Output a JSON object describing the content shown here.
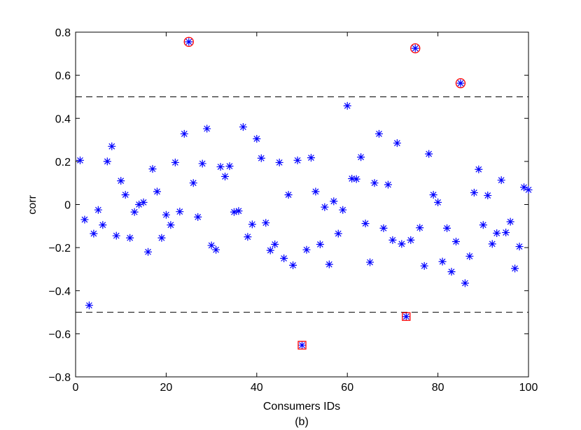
{
  "chart_data": {
    "type": "scatter",
    "xlabel": "Consumers IDs",
    "ylabel": "corr",
    "caption": "(b)",
    "xlim": [
      0,
      100
    ],
    "ylim": [
      -0.8,
      0.8
    ],
    "xticks": [
      0,
      20,
      40,
      60,
      80,
      100
    ],
    "yticks": [
      0.8,
      0.6,
      0.4,
      0.2,
      0,
      -0.2,
      -0.4,
      -0.6,
      -0.8
    ],
    "ytick_labels": [
      "0.8",
      "0.6",
      "0.4",
      "0.2",
      "0",
      "−0.2",
      "−0.4",
      "−0.6",
      "−0.8"
    ],
    "thresholds": [
      0.5,
      -0.5
    ],
    "grid": false,
    "colors": {
      "marker": "#0000ff",
      "highlight": "#ff0000",
      "threshold": "#000000",
      "axis": "#000000"
    },
    "series": [
      {
        "marker": "asterisk",
        "x": [
          1,
          2,
          3,
          4,
          5,
          6,
          7,
          8,
          9,
          10,
          11,
          12,
          13,
          14,
          15,
          16,
          17,
          18,
          19,
          20,
          21,
          22,
          23,
          24,
          25,
          26,
          27,
          28,
          29,
          30,
          31,
          32,
          33,
          34,
          35,
          36,
          37,
          38,
          39,
          40,
          41,
          42,
          43,
          44,
          45,
          46,
          47,
          48,
          49,
          50,
          51,
          52,
          53,
          54,
          55,
          56,
          57,
          58,
          59,
          60,
          61,
          62,
          63,
          64,
          65,
          66,
          67,
          68,
          69,
          70,
          71,
          72,
          73,
          74,
          75,
          76,
          77,
          78,
          79,
          80,
          81,
          82,
          83,
          84,
          85,
          86,
          87,
          88,
          89,
          90,
          91,
          92,
          93,
          94,
          95,
          96,
          97,
          98,
          99,
          100
        ],
        "y": [
          0.205,
          -0.07,
          -0.468,
          -0.135,
          -0.025,
          -0.095,
          0.2,
          0.27,
          -0.145,
          0.11,
          0.045,
          -0.155,
          -0.035,
          0.0,
          0.01,
          -0.22,
          0.165,
          0.06,
          -0.155,
          -0.048,
          -0.095,
          0.195,
          -0.033,
          0.328,
          0.755,
          0.1,
          -0.058,
          0.19,
          0.352,
          -0.19,
          -0.21,
          0.175,
          0.13,
          0.178,
          -0.035,
          -0.03,
          0.36,
          -0.15,
          -0.092,
          0.305,
          0.215,
          -0.085,
          -0.213,
          -0.185,
          0.195,
          -0.25,
          0.045,
          -0.282,
          0.205,
          -0.653,
          -0.21,
          0.217,
          0.06,
          -0.185,
          -0.012,
          -0.278,
          0.015,
          -0.135,
          -0.025,
          0.458,
          0.12,
          0.118,
          0.22,
          -0.088,
          -0.268,
          0.1,
          0.328,
          -0.11,
          0.092,
          -0.165,
          0.285,
          -0.183,
          -0.52,
          -0.165,
          0.725,
          -0.108,
          -0.285,
          0.235,
          0.045,
          0.01,
          -0.265,
          -0.11,
          -0.312,
          -0.172,
          0.563,
          -0.365,
          -0.24,
          0.055,
          0.163,
          -0.095,
          0.042,
          -0.183,
          -0.133,
          0.113,
          -0.13,
          -0.08,
          -0.297,
          -0.195,
          0.08,
          0.068
        ]
      }
    ],
    "highlighted": [
      {
        "x": 25,
        "y": 0.755,
        "shape": "circle"
      },
      {
        "x": 50,
        "y": -0.653,
        "shape": "square"
      },
      {
        "x": 73,
        "y": -0.52,
        "shape": "square"
      },
      {
        "x": 75,
        "y": 0.725,
        "shape": "circle"
      },
      {
        "x": 85,
        "y": 0.563,
        "shape": "circle"
      }
    ]
  }
}
